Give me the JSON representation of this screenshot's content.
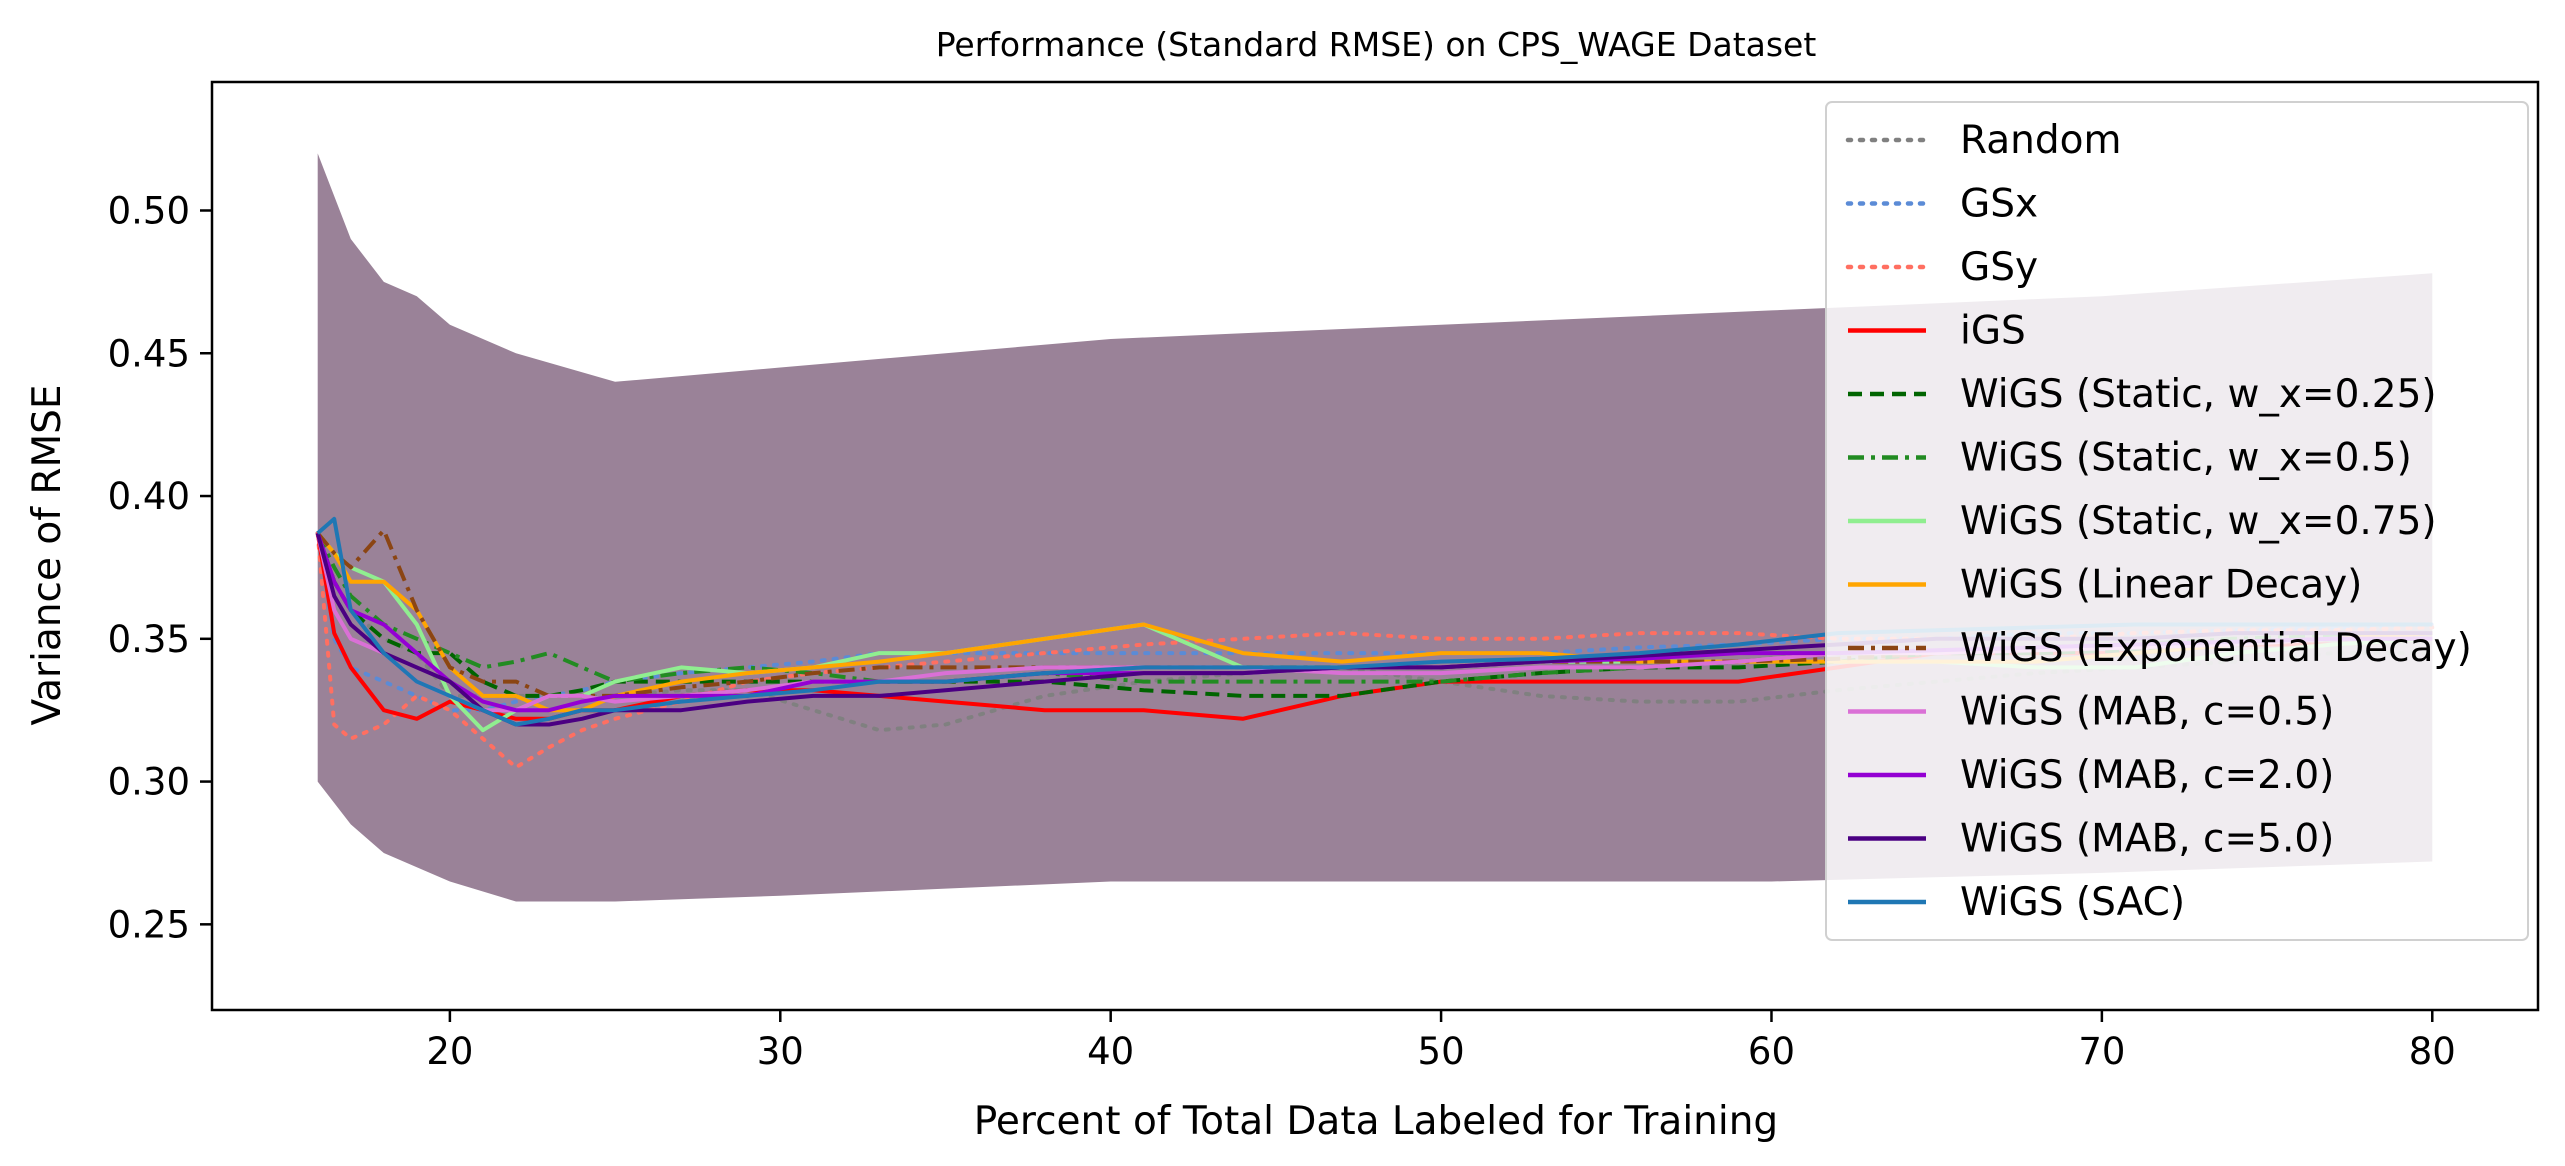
{
  "chart_data": {
    "type": "line",
    "title": "Performance (Standard RMSE) on CPS_WAGE Dataset",
    "xlabel": "Percent of Total Data Labeled for Training",
    "ylabel": "Variance of RMSE",
    "xlim": [
      12.8,
      83.2
    ],
    "ylim": [
      0.22,
      0.545
    ],
    "xticks": [
      20,
      30,
      40,
      50,
      60,
      70,
      80
    ],
    "xtick_labels": [
      "20",
      "30",
      "40",
      "50",
      "60",
      "70",
      "80"
    ],
    "yticks": [
      0.25,
      0.3,
      0.35,
      0.4,
      0.45,
      0.5
    ],
    "ytick_labels": [
      "0.25",
      "0.30",
      "0.35",
      "0.40",
      "0.45",
      "0.50"
    ],
    "grid": false,
    "legend_position": "top-right",
    "shaded_band": {
      "x": [
        16,
        17,
        18,
        19,
        20,
        22,
        25,
        30,
        40,
        50,
        60,
        70,
        80
      ],
      "lower": [
        0.3,
        0.285,
        0.275,
        0.27,
        0.265,
        0.258,
        0.258,
        0.26,
        0.265,
        0.265,
        0.265,
        0.268,
        0.272
      ],
      "upper": [
        0.52,
        0.49,
        0.475,
        0.47,
        0.46,
        0.45,
        0.44,
        0.445,
        0.455,
        0.46,
        0.465,
        0.47,
        0.478
      ]
    },
    "series": [
      {
        "name": "Random",
        "color": "#808080",
        "style": "dotted",
        "x": [
          16,
          16.5,
          17,
          18,
          19,
          20,
          21,
          22,
          23,
          24,
          25,
          27,
          29,
          31,
          33,
          35,
          38,
          41,
          44,
          47,
          50,
          53,
          56,
          59,
          62,
          65,
          68,
          71,
          74,
          77,
          80
        ],
        "y": [
          0.387,
          0.37,
          0.36,
          0.35,
          0.345,
          0.33,
          0.33,
          0.33,
          0.33,
          0.33,
          0.33,
          0.332,
          0.332,
          0.325,
          0.318,
          0.32,
          0.33,
          0.335,
          0.338,
          0.34,
          0.335,
          0.33,
          0.328,
          0.328,
          0.332,
          0.335,
          0.338,
          0.34,
          0.342,
          0.345,
          0.345
        ]
      },
      {
        "name": "GSx",
        "color": "#5b8bd6",
        "style": "dotted",
        "x": [
          16,
          16.5,
          17,
          18,
          19,
          20,
          21,
          22,
          23,
          24,
          25,
          27,
          29,
          31,
          33,
          35,
          38,
          41,
          44,
          47,
          50,
          53,
          56,
          59,
          62,
          65,
          68,
          71,
          74,
          77,
          80
        ],
        "y": [
          0.387,
          0.35,
          0.34,
          0.335,
          0.33,
          0.325,
          0.325,
          0.328,
          0.33,
          0.332,
          0.335,
          0.338,
          0.34,
          0.342,
          0.345,
          0.345,
          0.345,
          0.345,
          0.345,
          0.345,
          0.345,
          0.345,
          0.347,
          0.348,
          0.35,
          0.35,
          0.352,
          0.352,
          0.353,
          0.354,
          0.355
        ]
      },
      {
        "name": "GSy",
        "color": "#ff6f61",
        "style": "dotted",
        "x": [
          16,
          16.5,
          17,
          18,
          19,
          20,
          21,
          22,
          23,
          24,
          25,
          27,
          29,
          31,
          33,
          35,
          38,
          41,
          44,
          47,
          50,
          53,
          56,
          59,
          62,
          65,
          68,
          71,
          74,
          77,
          80
        ],
        "y": [
          0.387,
          0.32,
          0.315,
          0.32,
          0.33,
          0.325,
          0.315,
          0.305,
          0.312,
          0.318,
          0.322,
          0.328,
          0.335,
          0.338,
          0.34,
          0.342,
          0.345,
          0.348,
          0.35,
          0.352,
          0.35,
          0.35,
          0.352,
          0.352,
          0.35,
          0.35,
          0.35,
          0.352,
          0.353,
          0.353,
          0.354
        ]
      },
      {
        "name": "iGS",
        "color": "#ff0000",
        "style": "solid",
        "x": [
          16,
          16.5,
          17,
          18,
          19,
          20,
          21,
          22,
          23,
          24,
          25,
          27,
          29,
          31,
          33,
          35,
          38,
          41,
          44,
          47,
          50,
          53,
          56,
          59,
          62,
          65,
          68,
          71,
          74,
          77,
          80
        ],
        "y": [
          0.387,
          0.352,
          0.34,
          0.325,
          0.322,
          0.328,
          0.325,
          0.322,
          0.322,
          0.325,
          0.325,
          0.33,
          0.332,
          0.332,
          0.33,
          0.328,
          0.325,
          0.325,
          0.322,
          0.33,
          0.335,
          0.335,
          0.335,
          0.335,
          0.34,
          0.345,
          0.345,
          0.345,
          0.348,
          0.348,
          0.35
        ]
      },
      {
        "name": "WiGS (Static, w_x=0.25)",
        "color": "#006400",
        "style": "dashed",
        "x": [
          16,
          16.5,
          17,
          18,
          19,
          20,
          21,
          22,
          23,
          24,
          25,
          27,
          29,
          31,
          33,
          35,
          38,
          41,
          44,
          47,
          50,
          53,
          56,
          59,
          62,
          65,
          68,
          71,
          74,
          77,
          80
        ],
        "y": [
          0.387,
          0.37,
          0.36,
          0.35,
          0.345,
          0.345,
          0.335,
          0.33,
          0.33,
          0.332,
          0.335,
          0.335,
          0.335,
          0.335,
          0.335,
          0.335,
          0.335,
          0.332,
          0.33,
          0.33,
          0.335,
          0.338,
          0.34,
          0.34,
          0.342,
          0.345,
          0.345,
          0.346,
          0.348,
          0.35,
          0.352
        ]
      },
      {
        "name": "WiGS (Static, w_x=0.5)",
        "color": "#228b22",
        "style": "dashdot",
        "x": [
          16,
          16.5,
          17,
          18,
          19,
          20,
          21,
          22,
          23,
          24,
          25,
          27,
          29,
          31,
          33,
          35,
          38,
          41,
          44,
          47,
          50,
          53,
          56,
          59,
          62,
          65,
          68,
          71,
          74,
          77,
          80
        ],
        "y": [
          0.387,
          0.375,
          0.365,
          0.355,
          0.35,
          0.345,
          0.34,
          0.342,
          0.345,
          0.34,
          0.335,
          0.338,
          0.34,
          0.338,
          0.335,
          0.335,
          0.338,
          0.335,
          0.335,
          0.335,
          0.335,
          0.338,
          0.34,
          0.342,
          0.345,
          0.345,
          0.347,
          0.348,
          0.35,
          0.351,
          0.352
        ]
      },
      {
        "name": "WiGS (Static, w_x=0.75)",
        "color": "#90ee90",
        "style": "solid",
        "x": [
          16,
          16.5,
          17,
          18,
          19,
          20,
          21,
          22,
          23,
          24,
          25,
          27,
          29,
          31,
          33,
          35,
          38,
          41,
          44,
          47,
          50,
          53,
          56,
          59,
          62,
          65,
          68,
          71,
          74,
          77,
          80
        ],
        "y": [
          0.387,
          0.38,
          0.375,
          0.37,
          0.355,
          0.33,
          0.318,
          0.325,
          0.33,
          0.33,
          0.335,
          0.34,
          0.338,
          0.34,
          0.345,
          0.345,
          0.35,
          0.355,
          0.34,
          0.34,
          0.34,
          0.342,
          0.342,
          0.342,
          0.342,
          0.342,
          0.34,
          0.34,
          0.345,
          0.348,
          0.35
        ]
      },
      {
        "name": "WiGS (Linear Decay)",
        "color": "#ffa500",
        "style": "solid",
        "x": [
          16,
          16.5,
          17,
          18,
          19,
          20,
          21,
          22,
          23,
          24,
          25,
          27,
          29,
          31,
          33,
          35,
          38,
          41,
          44,
          47,
          50,
          53,
          56,
          59,
          62,
          65,
          68,
          71,
          74,
          77,
          80
        ],
        "y": [
          0.387,
          0.38,
          0.37,
          0.37,
          0.36,
          0.34,
          0.33,
          0.33,
          0.325,
          0.325,
          0.33,
          0.335,
          0.338,
          0.34,
          0.342,
          0.345,
          0.35,
          0.355,
          0.345,
          0.342,
          0.345,
          0.345,
          0.342,
          0.342,
          0.342,
          0.342,
          0.342,
          0.345,
          0.348,
          0.35,
          0.352
        ]
      },
      {
        "name": "WiGS (Exponential Decay)",
        "color": "#8b4513",
        "style": "dashdot",
        "x": [
          16,
          16.5,
          17,
          18,
          19,
          20,
          21,
          22,
          23,
          24,
          25,
          27,
          29,
          31,
          33,
          35,
          38,
          41,
          44,
          47,
          50,
          53,
          56,
          59,
          62,
          65,
          68,
          71,
          74,
          77,
          80
        ],
        "y": [
          0.387,
          0.38,
          0.375,
          0.388,
          0.36,
          0.34,
          0.335,
          0.335,
          0.33,
          0.33,
          0.33,
          0.333,
          0.335,
          0.338,
          0.34,
          0.34,
          0.34,
          0.34,
          0.34,
          0.34,
          0.34,
          0.342,
          0.342,
          0.342,
          0.343,
          0.345,
          0.346,
          0.347,
          0.348,
          0.35,
          0.35
        ]
      },
      {
        "name": "WiGS (MAB, c=0.5)",
        "color": "#da70d6",
        "style": "solid",
        "x": [
          16,
          16.5,
          17,
          18,
          19,
          20,
          21,
          22,
          23,
          24,
          25,
          27,
          29,
          31,
          33,
          35,
          38,
          41,
          44,
          47,
          50,
          53,
          56,
          59,
          62,
          65,
          68,
          71,
          74,
          77,
          80
        ],
        "y": [
          0.387,
          0.36,
          0.35,
          0.345,
          0.335,
          0.33,
          0.325,
          0.325,
          0.33,
          0.33,
          0.328,
          0.33,
          0.332,
          0.335,
          0.335,
          0.338,
          0.34,
          0.34,
          0.34,
          0.338,
          0.338,
          0.34,
          0.34,
          0.342,
          0.345,
          0.345,
          0.346,
          0.347,
          0.348,
          0.35,
          0.35
        ]
      },
      {
        "name": "WiGS (MAB, c=2.0)",
        "color": "#9400d3",
        "style": "solid",
        "x": [
          16,
          16.5,
          17,
          18,
          19,
          20,
          21,
          22,
          23,
          24,
          25,
          27,
          29,
          31,
          33,
          35,
          38,
          41,
          44,
          47,
          50,
          53,
          56,
          59,
          62,
          65,
          68,
          71,
          74,
          77,
          80
        ],
        "y": [
          0.387,
          0.37,
          0.36,
          0.355,
          0.345,
          0.335,
          0.328,
          0.325,
          0.325,
          0.328,
          0.33,
          0.33,
          0.33,
          0.335,
          0.335,
          0.335,
          0.338,
          0.338,
          0.338,
          0.34,
          0.34,
          0.342,
          0.343,
          0.345,
          0.345,
          0.346,
          0.347,
          0.348,
          0.349,
          0.35,
          0.35
        ]
      },
      {
        "name": "WiGS (MAB, c=5.0)",
        "color": "#4b0082",
        "style": "solid",
        "x": [
          16,
          16.5,
          17,
          18,
          19,
          20,
          21,
          22,
          23,
          24,
          25,
          27,
          29,
          31,
          33,
          35,
          38,
          41,
          44,
          47,
          50,
          53,
          56,
          59,
          62,
          65,
          68,
          71,
          74,
          77,
          80
        ],
        "y": [
          0.387,
          0.365,
          0.355,
          0.345,
          0.34,
          0.335,
          0.325,
          0.32,
          0.32,
          0.322,
          0.325,
          0.325,
          0.328,
          0.33,
          0.33,
          0.332,
          0.335,
          0.338,
          0.338,
          0.34,
          0.34,
          0.342,
          0.344,
          0.346,
          0.348,
          0.35,
          0.35,
          0.35,
          0.352,
          0.352,
          0.352
        ]
      },
      {
        "name": "WiGS (SAC)",
        "color": "#1f77b4",
        "style": "solid",
        "x": [
          16,
          16.5,
          17,
          18,
          19,
          20,
          21,
          22,
          23,
          24,
          25,
          27,
          29,
          31,
          33,
          35,
          38,
          41,
          44,
          47,
          50,
          53,
          56,
          59,
          62,
          65,
          68,
          71,
          74,
          77,
          80
        ],
        "y": [
          0.387,
          0.392,
          0.36,
          0.345,
          0.335,
          0.33,
          0.325,
          0.32,
          0.322,
          0.325,
          0.325,
          0.328,
          0.33,
          0.332,
          0.335,
          0.335,
          0.338,
          0.34,
          0.34,
          0.34,
          0.342,
          0.343,
          0.345,
          0.348,
          0.352,
          0.353,
          0.354,
          0.355,
          0.355,
          0.355,
          0.355
        ]
      }
    ]
  }
}
